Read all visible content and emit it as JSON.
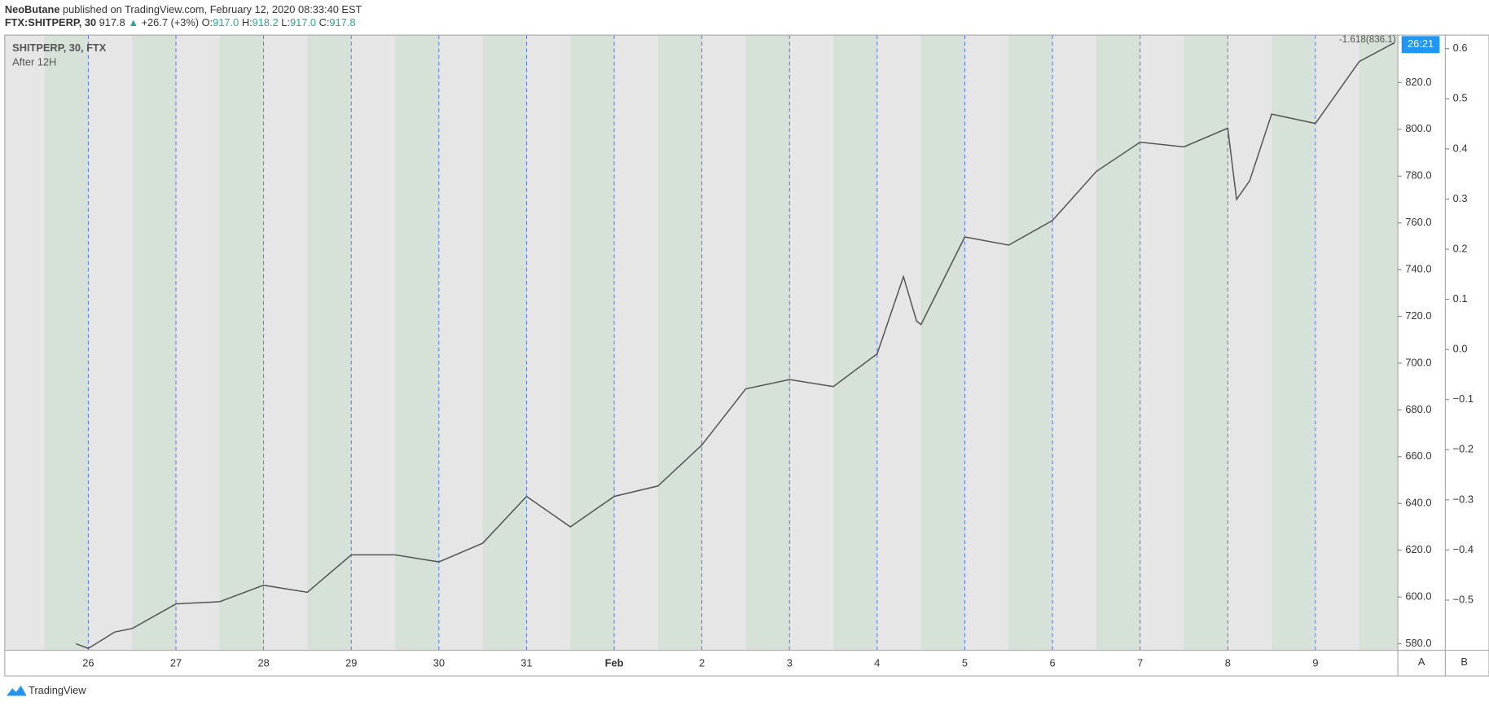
{
  "header": {
    "author": "NeoButane",
    "published": " published on TradingView.com, February 12, 2020 08:33:40 EST",
    "symbol": "FTX:SHITPERP, 30",
    "last": "917.8",
    "arrow": "▲",
    "change": "+26.7 (+3%)",
    "o_label": "O:",
    "open": "917.0",
    "h_label": "H:",
    "high": "918.2",
    "l_label": "L:",
    "low": "917.0",
    "c_label": "C:",
    "close": "917.8"
  },
  "footer": "TradingView",
  "chart_data": {
    "type": "line",
    "indicator": "After 12H",
    "annotation": "-1.618(836.1)",
    "countdown": "26:21",
    "scale_buttons": [
      "A",
      "B"
    ],
    "background": "#e6e6e6",
    "band_color": "#d6e1d7",
    "divider_color": "#4a6cf7",
    "x": [
      -0.14,
      0,
      0.3,
      0.5,
      1,
      1.5,
      2,
      2.5,
      3,
      3.5,
      4,
      4.5,
      5,
      5.5,
      6,
      6.5,
      7,
      7.5,
      8,
      8.5,
      9,
      9.3,
      9.45,
      9.5,
      10,
      10.5,
      11,
      11.5,
      12,
      12.5,
      13,
      13.1,
      13.25,
      13.5,
      14,
      14.5,
      14.9
    ],
    "series": [
      {
        "name": "SHITPERP, 30, FTX",
        "color": "#555555",
        "values": [
          580,
          578,
          585,
          586.5,
          597,
          598,
          605,
          602,
          618,
          618,
          615,
          623,
          643,
          630,
          643,
          647.5,
          665,
          689,
          693,
          690,
          704,
          737,
          718,
          716.5,
          754,
          750.5,
          761,
          782,
          794.5,
          792.5,
          800.5,
          770,
          778,
          806.5,
          802.5,
          829,
          837
        ]
      }
    ],
    "xlim": [
      -0.953,
      14.94
    ],
    "xticks": [
      {
        "value": 0,
        "label": "26"
      },
      {
        "value": 1,
        "label": "27"
      },
      {
        "value": 2,
        "label": "28"
      },
      {
        "value": 3,
        "label": "29"
      },
      {
        "value": 4,
        "label": "30"
      },
      {
        "value": 5,
        "label": "31"
      },
      {
        "value": 6,
        "label": "Feb"
      },
      {
        "value": 7,
        "label": "2"
      },
      {
        "value": 8,
        "label": "3"
      },
      {
        "value": 9,
        "label": "4"
      },
      {
        "value": 10,
        "label": "5"
      },
      {
        "value": 11,
        "label": "6"
      },
      {
        "value": 12,
        "label": "7"
      },
      {
        "value": 13,
        "label": "8"
      },
      {
        "value": 14,
        "label": "9"
      }
    ],
    "ylim": [
      577.2,
      840.3
    ],
    "yticks": [
      {
        "value": 580,
        "label": "580.0"
      },
      {
        "value": 600,
        "label": "600.0"
      },
      {
        "value": 620,
        "label": "620.0"
      },
      {
        "value": 640,
        "label": "640.0"
      },
      {
        "value": 660,
        "label": "660.0"
      },
      {
        "value": 680,
        "label": "680.0"
      },
      {
        "value": 700,
        "label": "700.0"
      },
      {
        "value": 720,
        "label": "720.0"
      },
      {
        "value": 740,
        "label": "740.0"
      },
      {
        "value": 760,
        "label": "760.0"
      },
      {
        "value": 780,
        "label": "780.0"
      },
      {
        "value": 800,
        "label": "800.0"
      },
      {
        "value": 820,
        "label": "820.0"
      }
    ],
    "y2lim": [
      -0.6,
      0.627
    ],
    "y2ticks": [
      {
        "value": -0.5,
        "label": "−0.5"
      },
      {
        "value": -0.4,
        "label": "−0.4"
      },
      {
        "value": -0.3,
        "label": "−0.3"
      },
      {
        "value": -0.2,
        "label": "−0.2"
      },
      {
        "value": -0.1,
        "label": "−0.1"
      },
      {
        "value": 0,
        "label": "0.0"
      },
      0.1,
      0.2,
      0.3,
      0.4,
      0.5,
      0.6
    ]
  }
}
